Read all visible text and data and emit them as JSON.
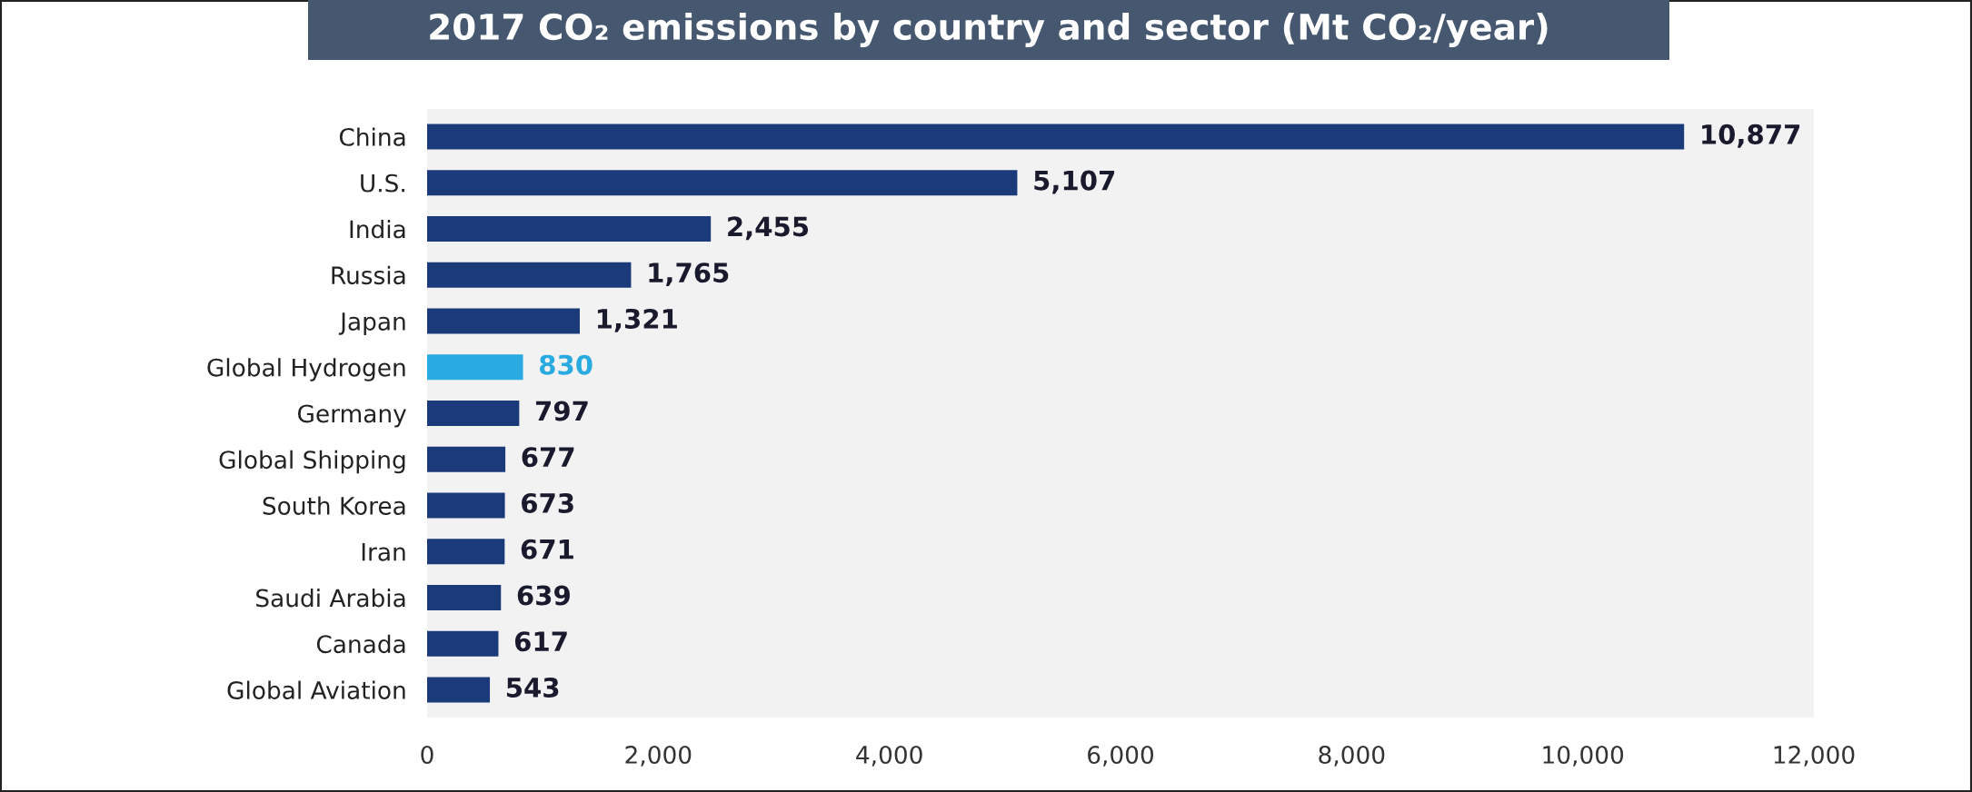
{
  "chart_data": {
    "type": "bar",
    "orientation": "horizontal",
    "title": "2017 CO₂ emissions by country and sector (Mt CO₂/year)",
    "categories": [
      "China",
      "U.S.",
      "India",
      "Russia",
      "Japan",
      "Global Hydrogen",
      "Germany",
      "Global Shipping",
      "South Korea",
      "Iran",
      "Saudi Arabia",
      "Canada",
      "Global Aviation"
    ],
    "values": [
      10877,
      5107,
      2455,
      1765,
      1321,
      830,
      797,
      677,
      673,
      671,
      639,
      617,
      543
    ],
    "colors": [
      "#1b3a7a",
      "#1b3a7a",
      "#1b3a7a",
      "#1b3a7a",
      "#1b3a7a",
      "#29aae1",
      "#1b3a7a",
      "#1b3a7a",
      "#1b3a7a",
      "#1b3a7a",
      "#1b3a7a",
      "#1b3a7a",
      "#1b3a7a"
    ],
    "value_labels": [
      "10,877",
      "5,107",
      "2,455",
      "1,765",
      "1,321",
      "830",
      "797",
      "677",
      "673",
      "671",
      "639",
      "617",
      "543"
    ],
    "xlim": [
      0,
      12000
    ],
    "xticks": [
      {
        "value": 0,
        "label": "0"
      },
      {
        "value": 2000,
        "label": "2,000"
      },
      {
        "value": 4000,
        "label": "4,000"
      },
      {
        "value": 6000,
        "label": "6,000"
      },
      {
        "value": 8000,
        "label": "8,000"
      },
      {
        "value": 10000,
        "label": "10,000"
      },
      {
        "value": 12000,
        "label": "12,000"
      }
    ],
    "grid": false,
    "legend": false
  }
}
